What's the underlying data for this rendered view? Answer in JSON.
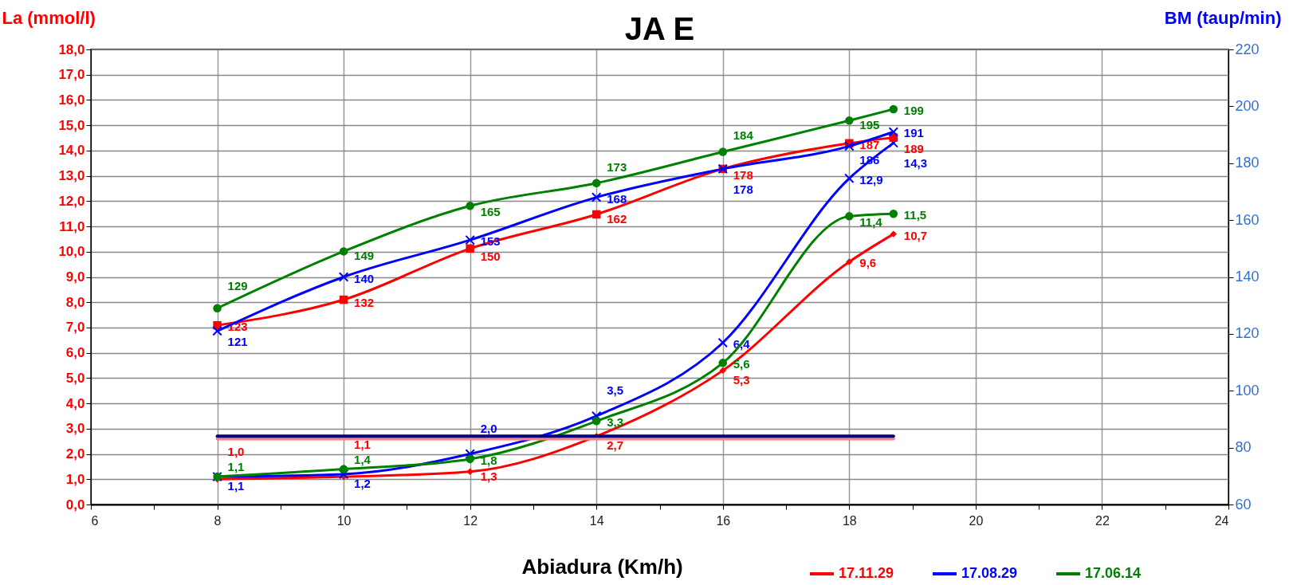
{
  "chart_data": {
    "type": "line",
    "title": "JA E",
    "xlabel": "Abiadura (Km/h)",
    "ylabel": "La (mmol/l)",
    "y2label": "BM (taup/min)",
    "x": [
      8,
      10,
      12,
      14,
      16,
      18,
      18.7
    ],
    "xlim": [
      6,
      24
    ],
    "xticks": [
      6,
      {
        "value": 7,
        "label": null
      },
      8,
      {
        "value": 9,
        "label": null
      },
      10,
      {
        "value": 11,
        "label": null
      },
      12,
      {
        "value": 13,
        "label": null
      },
      14,
      {
        "value": 15,
        "label": null
      },
      16,
      {
        "value": 17,
        "label": null
      },
      18,
      {
        "value": 19,
        "label": null
      },
      20,
      {
        "value": 21,
        "label": null
      },
      22,
      {
        "value": 23,
        "label": null
      },
      24
    ],
    "ylim": [
      0,
      18
    ],
    "yticks": [
      {
        "value": 0,
        "label": "0,0"
      },
      {
        "value": 1,
        "label": "1,0"
      },
      {
        "value": 2,
        "label": "2,0"
      },
      {
        "value": 3,
        "label": "3,0"
      },
      {
        "value": 4,
        "label": "4,0"
      },
      {
        "value": 5,
        "label": "5,0"
      },
      {
        "value": 6,
        "label": "6,0"
      },
      {
        "value": 7,
        "label": "7,0"
      },
      {
        "value": 8,
        "label": "8,0"
      },
      {
        "value": 9,
        "label": "9,0"
      },
      {
        "value": 10,
        "label": "10,0"
      },
      {
        "value": 11,
        "label": "11,0"
      },
      {
        "value": 12,
        "label": "12,0"
      },
      {
        "value": 13,
        "label": "13,0"
      },
      {
        "value": 14,
        "label": "14,0"
      },
      {
        "value": 15,
        "label": "15,0"
      },
      {
        "value": 16,
        "label": "16,0"
      },
      {
        "value": 17,
        "label": "17,0"
      },
      {
        "value": 18,
        "label": "18,0"
      }
    ],
    "y2lim": [
      60,
      220
    ],
    "y2ticks": [
      60,
      80,
      100,
      120,
      140,
      160,
      180,
      200,
      220
    ],
    "grid": true,
    "legend": "bottom right",
    "series": [
      {
        "name": "17.11.29",
        "color": "#ff0000",
        "axis": "y2",
        "marker": "square",
        "values": [
          123,
          132,
          150,
          162,
          178,
          187,
          189
        ],
        "value_labels": [
          "123",
          "132",
          "150",
          "162",
          "178",
          "187",
          "189"
        ]
      },
      {
        "name": "17.08.29",
        "color": "#0000ff",
        "axis": "y2",
        "marker": "cross",
        "values": [
          121,
          140,
          153,
          168,
          178,
          186,
          191
        ],
        "value_labels": [
          "121",
          "140",
          "153",
          "168",
          "178",
          "186",
          "191"
        ]
      },
      {
        "name": "17.06.14",
        "color": "#008000",
        "axis": "y2",
        "marker": "circle",
        "values": [
          129,
          149,
          165,
          173,
          184,
          195,
          199
        ],
        "value_labels": [
          "129",
          "149",
          "165",
          "173",
          "184",
          "195",
          "199"
        ]
      },
      {
        "color": "#ff0000",
        "marker": "diamond",
        "values": [
          1.0,
          1.1,
          1.3,
          2.7,
          5.3,
          9.6,
          10.7
        ],
        "value_labels": [
          "1,0",
          "1,1",
          "1,3",
          "2,7",
          "5,3",
          "9,6",
          "10,7"
        ]
      },
      {
        "color": "#0000ff",
        "marker": "cross",
        "values": [
          1.1,
          1.2,
          2.0,
          3.5,
          6.4,
          12.9,
          14.3
        ],
        "value_labels": [
          "1,1",
          "1,2",
          "2,0",
          "3,5",
          "6,4",
          "12,9",
          "14,3"
        ]
      },
      {
        "color": "#008000",
        "marker": "circle",
        "values": [
          1.1,
          1.4,
          1.8,
          3.3,
          5.6,
          11.4,
          11.5
        ],
        "value_labels": [
          "1,1",
          "1,4",
          "1,8",
          "3,3",
          "5,6",
          "11,4",
          "11,5"
        ]
      },
      {
        "color": "#ff8080",
        "values": [
          2.6,
          2.6,
          2.6,
          2.6,
          2.6,
          2.6,
          2.6
        ]
      },
      {
        "color": "#000080",
        "values": [
          2.7,
          2.7,
          2.7,
          2.7,
          2.7,
          2.7,
          2.7
        ]
      }
    ]
  }
}
